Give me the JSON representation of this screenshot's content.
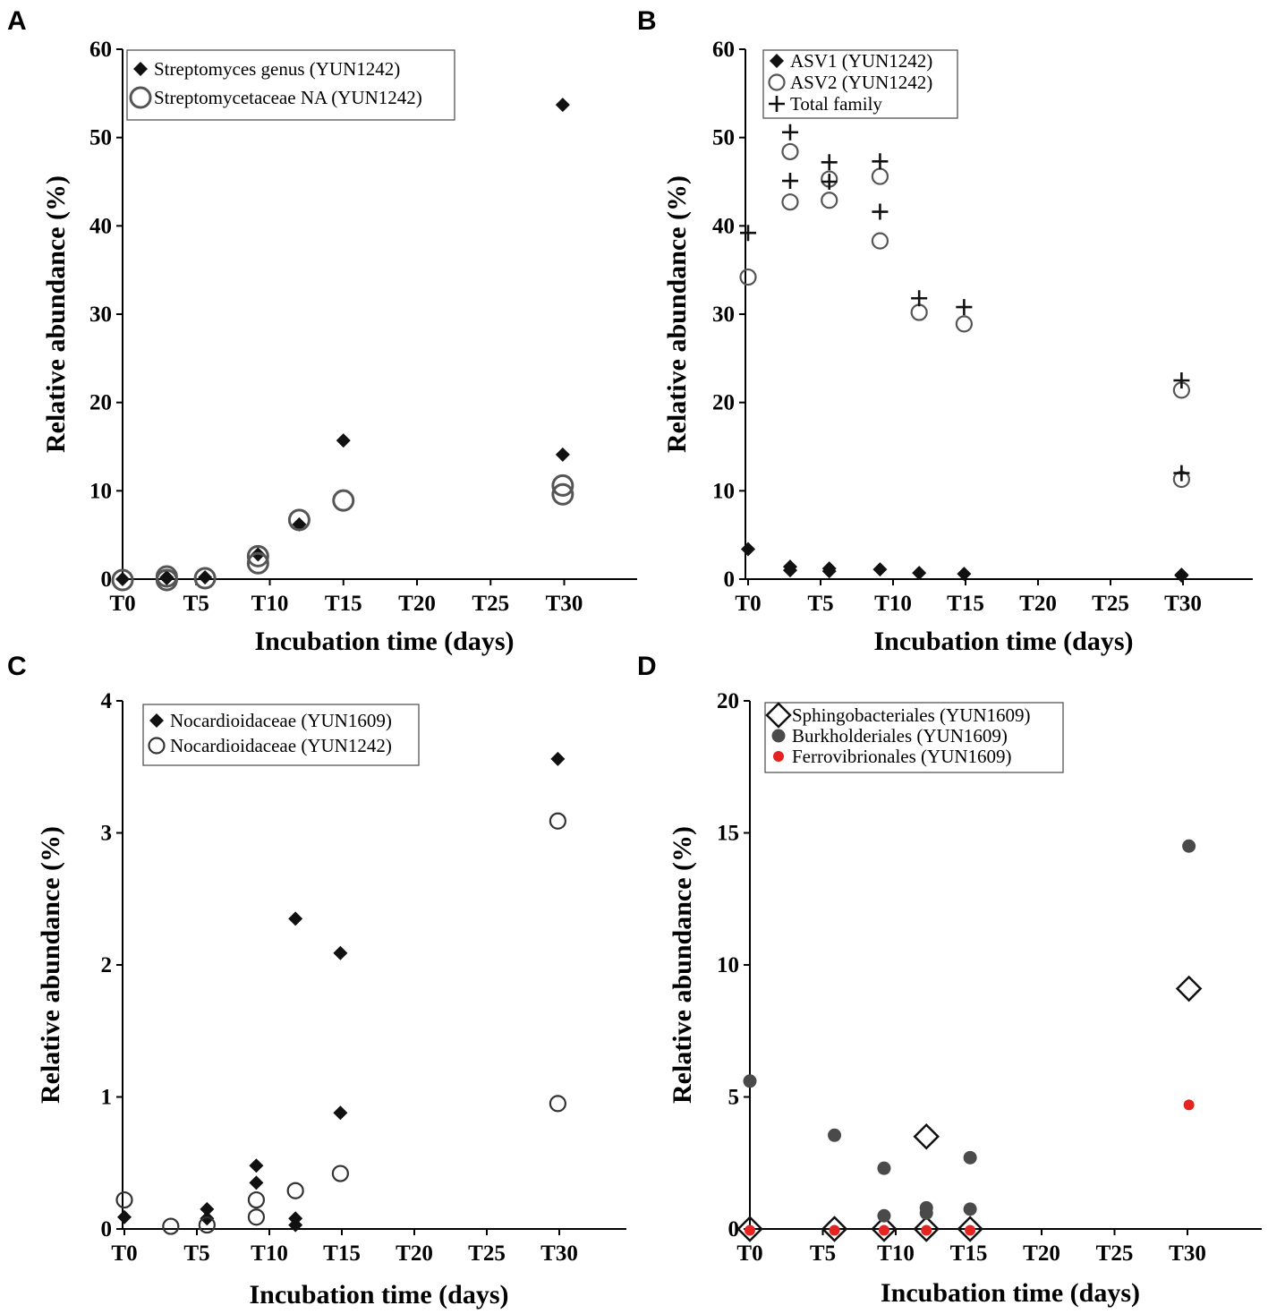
{
  "chart_data": [
    {
      "panel": "A",
      "type": "scatter",
      "xlabel": "Incubation time (days)",
      "ylabel": "Relative abundance (%)",
      "xlim": [
        0,
        35
      ],
      "ylim": [
        0,
        60
      ],
      "xticks": [
        0,
        5,
        10,
        15,
        20,
        25,
        30
      ],
      "xtick_labels": [
        "T0",
        "T5",
        "T10",
        "T15",
        "T20",
        "T25",
        "T30"
      ],
      "yticks": [
        0,
        10,
        20,
        30,
        40,
        50,
        60
      ],
      "ytick_labels": [
        "0",
        "10",
        "20",
        "30",
        "40",
        "50",
        "60"
      ],
      "legend_position": "top-left",
      "series": [
        {
          "name": "Streptomyces genus (YUN1242)",
          "marker": "diamond-filled",
          "color": "#111111",
          "points": [
            [
              0,
              0
            ],
            [
              3,
              0.1
            ],
            [
              3,
              0.2
            ],
            [
              5.6,
              0.2
            ],
            [
              9.2,
              2.8
            ],
            [
              12,
              6.2
            ],
            [
              15,
              15.7
            ],
            [
              29.9,
              53.7
            ],
            [
              29.9,
              14.1
            ]
          ]
        },
        {
          "name": "Streptomycetaceae NA (YUN1242)",
          "marker": "circle-open-large",
          "color": "#555555",
          "points": [
            [
              0,
              -0.1
            ],
            [
              3,
              0.3
            ],
            [
              3,
              -0.1
            ],
            [
              5.6,
              0.1
            ],
            [
              9.2,
              1.8
            ],
            [
              9.2,
              2.6
            ],
            [
              12,
              6.7
            ],
            [
              15,
              8.9
            ],
            [
              29.9,
              10.6
            ],
            [
              29.9,
              9.6
            ]
          ]
        }
      ]
    },
    {
      "panel": "B",
      "type": "scatter",
      "xlabel": "Incubation time (days)",
      "ylabel": "Relative abundance (%)",
      "xlim": [
        0,
        35
      ],
      "ylim": [
        0,
        60
      ],
      "xticks": [
        0,
        5,
        10,
        15,
        20,
        25,
        30
      ],
      "xtick_labels": [
        "T0",
        "T5",
        "T10",
        "T15",
        "T20",
        "T25",
        "T30"
      ],
      "yticks": [
        0,
        10,
        20,
        30,
        40,
        50,
        60
      ],
      "ytick_labels": [
        "0",
        "10",
        "20",
        "30",
        "40",
        "50",
        "60"
      ],
      "legend_position": "top-left",
      "series": [
        {
          "name": "ASV1 (YUN1242)",
          "marker": "diamond-filled",
          "color": "#111111",
          "points": [
            [
              0,
              3.4
            ],
            [
              2.9,
              1.4
            ],
            [
              2.9,
              1.0
            ],
            [
              5.6,
              1.2
            ],
            [
              5.6,
              0.9
            ],
            [
              9.1,
              1.1
            ],
            [
              11.8,
              0.7
            ],
            [
              14.9,
              0.6
            ],
            [
              29.9,
              0.5
            ],
            [
              29.9,
              0.4
            ]
          ]
        },
        {
          "name": "ASV2 (YUN1242)",
          "marker": "circle-open",
          "color": "#555555",
          "points": [
            [
              0,
              34.2
            ],
            [
              2.9,
              48.4
            ],
            [
              2.9,
              42.7
            ],
            [
              5.6,
              45.3
            ],
            [
              5.6,
              42.9
            ],
            [
              9.1,
              45.6
            ],
            [
              9.1,
              38.3
            ],
            [
              11.8,
              30.2
            ],
            [
              14.9,
              28.9
            ],
            [
              29.9,
              21.4
            ],
            [
              29.9,
              11.3
            ]
          ]
        },
        {
          "name": "Total family",
          "marker": "plus",
          "color": "#111111",
          "points": [
            [
              0,
              39.2
            ],
            [
              2.9,
              50.6
            ],
            [
              2.9,
              45.1
            ],
            [
              5.6,
              47.2
            ],
            [
              5.6,
              45.0
            ],
            [
              9.1,
              47.3
            ],
            [
              9.1,
              41.6
            ],
            [
              11.8,
              31.8
            ],
            [
              14.9,
              30.8
            ],
            [
              29.9,
              22.5
            ],
            [
              29.9,
              12.0
            ]
          ]
        }
      ]
    },
    {
      "panel": "C",
      "type": "scatter",
      "xlabel": "Incubation time (days)",
      "ylabel": "Relative abundance (%)",
      "xlim": [
        0,
        35
      ],
      "ylim": [
        0,
        4
      ],
      "xticks": [
        0,
        5,
        10,
        15,
        20,
        25,
        30
      ],
      "xtick_labels": [
        "T0",
        "T5",
        "T10",
        "T15",
        "T20",
        "T25",
        "T30"
      ],
      "yticks": [
        0,
        1,
        2,
        3,
        4
      ],
      "ytick_labels": [
        "0",
        "1",
        "2",
        "3",
        "4"
      ],
      "legend_position": "top-left",
      "series": [
        {
          "name": "Nocardioidaceae (YUN1609)",
          "marker": "diamond-filled",
          "color": "#111111",
          "points": [
            [
              0,
              0.09
            ],
            [
              5.7,
              0.15
            ],
            [
              5.7,
              0.08
            ],
            [
              9.1,
              0.48
            ],
            [
              9.1,
              0.35
            ],
            [
              11.8,
              2.35
            ],
            [
              11.8,
              0.08
            ],
            [
              11.8,
              0.03
            ],
            [
              14.9,
              2.09
            ],
            [
              14.9,
              0.88
            ],
            [
              29.9,
              3.56
            ]
          ]
        },
        {
          "name": "Nocardioidaceae (YUN1242)",
          "marker": "circle-open",
          "color": "#333333",
          "points": [
            [
              0,
              0.22
            ],
            [
              3.2,
              0.02
            ],
            [
              5.7,
              0.03
            ],
            [
              9.1,
              0.22
            ],
            [
              9.1,
              0.09
            ],
            [
              11.8,
              0.29
            ],
            [
              14.9,
              0.42
            ],
            [
              29.9,
              3.09
            ],
            [
              29.9,
              0.95
            ]
          ]
        }
      ]
    },
    {
      "panel": "D",
      "type": "scatter",
      "xlabel": "Incubation time (days)",
      "ylabel": "Relative abundance (%)",
      "xlim": [
        0,
        35
      ],
      "ylim": [
        0,
        20
      ],
      "xticks": [
        0,
        5,
        10,
        15,
        20,
        25,
        30
      ],
      "xtick_labels": [
        "T0",
        "T5",
        "T10",
        "T15",
        "T20",
        "T25",
        "T30"
      ],
      "yticks": [
        0,
        5,
        10,
        15,
        20
      ],
      "ytick_labels": [
        "0",
        "5",
        "10",
        "15",
        "20"
      ],
      "legend_position": "top-left",
      "series": [
        {
          "name": "Sphingobacteriales (YUN1609)",
          "marker": "diamond-open",
          "color": "#111111",
          "points": [
            [
              0,
              0
            ],
            [
              5.8,
              0
            ],
            [
              9.2,
              0
            ],
            [
              12.1,
              3.5
            ],
            [
              12.1,
              0
            ],
            [
              15.1,
              0
            ],
            [
              30.1,
              9.1
            ]
          ]
        },
        {
          "name": "Burkholderiales (YUN1609)",
          "marker": "circle-filled",
          "color": "#4a4a4a",
          "points": [
            [
              0,
              5.6
            ],
            [
              5.8,
              3.55
            ],
            [
              9.2,
              2.3
            ],
            [
              9.2,
              0.5
            ],
            [
              12.1,
              0.8
            ],
            [
              12.1,
              0.6
            ],
            [
              15.1,
              2.7
            ],
            [
              15.1,
              0.75
            ],
            [
              30.1,
              14.5
            ]
          ]
        },
        {
          "name": "Ferrovibrionales (YUN1609)",
          "marker": "circle-filled-small",
          "color": "#e52421",
          "points": [
            [
              0,
              -0.05
            ],
            [
              5.8,
              -0.05
            ],
            [
              9.2,
              -0.05
            ],
            [
              12.1,
              -0.05
            ],
            [
              15.1,
              -0.05
            ],
            [
              30.1,
              4.7
            ]
          ]
        }
      ]
    }
  ]
}
